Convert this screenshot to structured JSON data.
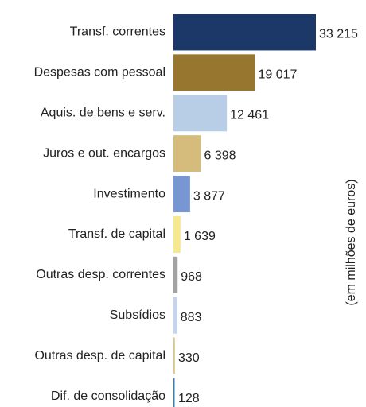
{
  "chart_data": {
    "type": "barh",
    "axis_label": "(em milhões de euros)",
    "categories": [
      "Transf. correntes",
      "Despesas com pessoal",
      "Aquis. de bens e serv.",
      "Juros e out. encargos",
      "Investimento",
      "Transf. de capital",
      "Outras desp. correntes",
      "Subsídios",
      "Outras desp. de capital",
      "Dif. de consolidação"
    ],
    "values": [
      33215,
      19017,
      12461,
      6398,
      3877,
      1639,
      968,
      883,
      330,
      128
    ],
    "value_labels": [
      "33 215",
      "19 017",
      "12 461",
      "6 398",
      "3 877",
      "1 639",
      "968",
      "883",
      "330",
      "128"
    ],
    "colors": [
      "#1b3868",
      "#977630",
      "#b8cde6",
      "#d5bc7d",
      "#7896d2",
      "#f6e88c",
      "#a3a3a3",
      "#c4d5eb",
      "#d8c48d",
      "#3c7fa8"
    ]
  }
}
